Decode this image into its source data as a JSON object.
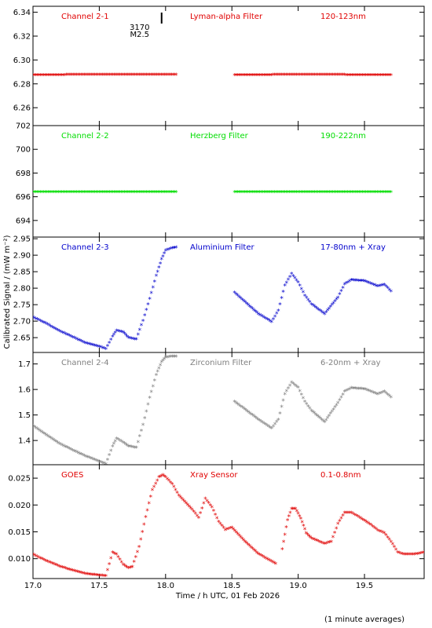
{
  "chart_data": {
    "type": "scatter",
    "xlabel": "Time / h UTC, 01 Feb 2026",
    "ylabel": "Calibrated Signal / (mW m⁻²)",
    "footer_note": "(1 minute averages)",
    "xlim": [
      17.0,
      19.95
    ],
    "x_ticks": [
      "17.0",
      "17.5",
      "18.0",
      "18.5",
      "19.0",
      "19.5"
    ],
    "flare_marker": {
      "x": 17.97,
      "time_label": "3170",
      "class_label": "M2.5"
    },
    "panels": [
      {
        "id": "ch21",
        "title": "Channel 2-1",
        "filter": "Lyman-alpha Filter",
        "band": "120-123nm",
        "color": "#e00000",
        "ylim": [
          6.245,
          6.345
        ],
        "y_ticks": [
          "6.26",
          "6.28",
          "6.30",
          "6.32",
          "6.34"
        ],
        "series": [
          {
            "x": [
              17.0,
              17.5,
              18.08
            ],
            "y": [
              6.2875,
              6.2877,
              6.2878
            ]
          },
          {
            "x": [
              18.52,
              19.0,
              19.7
            ],
            "y": [
              6.2873,
              6.2878,
              6.2874
            ]
          }
        ]
      },
      {
        "id": "ch22",
        "title": "Channel 2-2",
        "filter": "Herzberg Filter",
        "band": "190-222nm",
        "color": "#00dd00",
        "ylim": [
          692.6,
          702.0
        ],
        "y_ticks": [
          "694",
          "696",
          "698",
          "700",
          "702"
        ],
        "series": [
          {
            "x": [
              17.0,
              17.5,
              18.08
            ],
            "y": [
              696.4,
              696.4,
              696.4
            ]
          },
          {
            "x": [
              18.52,
              19.0,
              19.7
            ],
            "y": [
              696.4,
              696.4,
              696.4
            ]
          }
        ]
      },
      {
        "id": "ch23",
        "title": "Channel 2-3",
        "filter": "Aluminium Filter",
        "band": "17-80nm + Xray",
        "color": "#0000cc",
        "ylim": [
          2.605,
          2.955
        ],
        "y_ticks": [
          "2.65",
          "2.70",
          "2.75",
          "2.80",
          "2.85",
          "2.90",
          "2.95"
        ],
        "series": [
          {
            "x": [
              17.0,
              17.1,
              17.2,
              17.3,
              17.4,
              17.5,
              17.55,
              17.6,
              17.63,
              17.68,
              17.72,
              17.78,
              17.83,
              17.88,
              17.93,
              17.97,
              18.0,
              18.05,
              18.08
            ],
            "y": [
              2.712,
              2.693,
              2.67,
              2.652,
              2.633,
              2.623,
              2.616,
              2.654,
              2.672,
              2.667,
              2.65,
              2.645,
              2.702,
              2.768,
              2.838,
              2.888,
              2.915,
              2.922,
              2.924
            ]
          },
          {
            "x": [
              18.52,
              18.6,
              18.7,
              18.8,
              18.85,
              18.9,
              18.95,
              19.0,
              19.05,
              19.1,
              19.2,
              19.3,
              19.35,
              19.4,
              19.5,
              19.6,
              19.65,
              19.7
            ],
            "y": [
              2.787,
              2.758,
              2.722,
              2.698,
              2.732,
              2.808,
              2.844,
              2.818,
              2.778,
              2.752,
              2.722,
              2.772,
              2.812,
              2.825,
              2.822,
              2.806,
              2.811,
              2.791
            ]
          }
        ]
      },
      {
        "id": "ch24",
        "title": "Channel 2-4",
        "filter": "Zirconium Filter",
        "band": "6-20nm + Xray",
        "color": "#808080",
        "ylim": [
          1.305,
          1.745
        ],
        "y_ticks": [
          "1.4",
          "1.5",
          "1.6",
          "1.7"
        ],
        "series": [
          {
            "x": [
              17.0,
              17.1,
              17.2,
              17.3,
              17.4,
              17.5,
              17.55,
              17.6,
              17.63,
              17.68,
              17.72,
              17.78,
              17.83,
              17.88,
              17.93,
              17.97,
              18.0,
              18.05,
              18.08
            ],
            "y": [
              1.458,
              1.422,
              1.388,
              1.362,
              1.338,
              1.318,
              1.308,
              1.378,
              1.408,
              1.393,
              1.378,
              1.372,
              1.462,
              1.568,
              1.658,
              1.708,
              1.726,
              1.73,
              1.73
            ]
          },
          {
            "x": [
              18.52,
              18.6,
              18.7,
              18.8,
              18.85,
              18.9,
              18.95,
              19.0,
              19.05,
              19.1,
              19.2,
              19.3,
              19.35,
              19.4,
              19.5,
              19.6,
              19.65,
              19.7
            ],
            "y": [
              1.552,
              1.522,
              1.482,
              1.448,
              1.482,
              1.582,
              1.628,
              1.608,
              1.552,
              1.518,
              1.472,
              1.548,
              1.592,
              1.606,
              1.602,
              1.582,
              1.592,
              1.57
            ]
          }
        ]
      },
      {
        "id": "goes",
        "title": "GOES",
        "filter": "Xray Sensor",
        "band": "0.1-0.8nm",
        "color": "#e00000",
        "ylim": [
          0.0063,
          0.0275
        ],
        "y_ticks": [
          "0.010",
          "0.015",
          "0.020",
          "0.025"
        ],
        "series": [
          {
            "x": [
              17.0,
              17.1,
              17.2,
              17.3,
              17.4,
              17.5,
              17.55,
              17.6,
              17.63,
              17.68,
              17.72,
              17.75,
              17.8,
              17.85,
              17.9,
              17.95,
              17.98,
              18.0,
              18.05,
              18.1,
              18.2,
              18.25,
              18.3,
              18.35,
              18.4,
              18.45,
              18.5,
              18.6,
              18.7,
              18.8,
              18.83
            ],
            "y": [
              0.0108,
              0.0096,
              0.0086,
              0.0078,
              0.0072,
              0.0069,
              0.0068,
              0.0112,
              0.0108,
              0.0089,
              0.0083,
              0.0085,
              0.0122,
              0.0178,
              0.0228,
              0.0252,
              0.0256,
              0.0252,
              0.0239,
              0.0218,
              0.0192,
              0.0176,
              0.0212,
              0.0196,
              0.0169,
              0.0154,
              0.0158,
              0.0132,
              0.0109,
              0.0095,
              0.0091
            ]
          },
          {
            "x": [
              18.88,
              18.92,
              18.95,
              18.98,
              19.02,
              19.06,
              19.1,
              19.2,
              19.25,
              19.3,
              19.35,
              19.4,
              19.45,
              19.55,
              19.6,
              19.65,
              19.7,
              19.75,
              19.8,
              19.85,
              19.9,
              19.95
            ],
            "y": [
              0.0118,
              0.0172,
              0.0193,
              0.0193,
              0.0175,
              0.0148,
              0.0138,
              0.0128,
              0.0132,
              0.0165,
              0.0186,
              0.0186,
              0.0179,
              0.0163,
              0.0153,
              0.0148,
              0.0132,
              0.0112,
              0.0108,
              0.0108,
              0.0109,
              0.0112
            ]
          }
        ]
      }
    ]
  }
}
